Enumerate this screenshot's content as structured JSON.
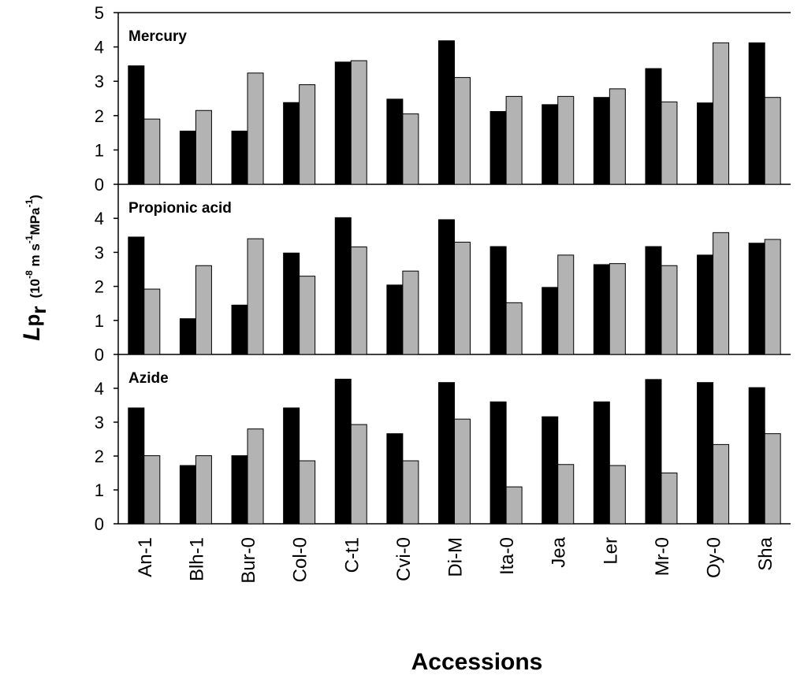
{
  "chart_data": {
    "type": "bar",
    "xlabel": "Accessions",
    "ylabel": {
      "main": "L",
      "sub": "p",
      "subsub": "r",
      "unit_parts": [
        "(10",
        "-8",
        " m s",
        "-1",
        "MPa",
        "-1",
        ")"
      ]
    },
    "categories": [
      "An-1",
      "Blh-1",
      "Bur-0",
      "Col-0",
      "C-t1",
      "Cvi-0",
      "Di-M",
      "Ita-0",
      "Jea",
      "Ler",
      "Mr-0",
      "Oy-0",
      "Sha"
    ],
    "colors": {
      "series1": "#000000",
      "series2": "#b3b3b3"
    },
    "panels": [
      {
        "title": "Mercury",
        "ylim": [
          0,
          5
        ],
        "yticks": [
          0,
          1,
          2,
          3,
          4,
          5
        ],
        "series": [
          {
            "values": [
              3.45,
              1.55,
              1.55,
              2.38,
              3.56,
              2.48,
              4.18,
              2.12,
              2.32,
              2.53,
              3.37,
              2.37,
              4.12
            ]
          },
          {
            "values": [
              1.9,
              2.15,
              3.24,
              2.9,
              3.6,
              2.05,
              3.11,
              2.56,
              2.56,
              2.78,
              2.4,
              4.12,
              2.53
            ]
          }
        ]
      },
      {
        "title": "Propionic acid",
        "ylim": [
          0,
          5
        ],
        "yticks": [
          0,
          1,
          2,
          3,
          4
        ],
        "series": [
          {
            "values": [
              3.45,
              1.05,
              1.45,
              2.98,
              4.02,
              2.04,
              3.96,
              3.17,
              1.97,
              2.64,
              3.17,
              2.92,
              3.27
            ]
          },
          {
            "values": [
              1.92,
              2.61,
              3.4,
              2.3,
              3.16,
              2.45,
              3.3,
              1.52,
              2.92,
              2.67,
              2.61,
              3.58,
              3.38
            ]
          }
        ]
      },
      {
        "title": "Azide",
        "ylim": [
          0,
          5
        ],
        "yticks": [
          0,
          1,
          2,
          3,
          4
        ],
        "series": [
          {
            "values": [
              3.42,
              1.72,
              2.01,
              3.42,
              4.27,
              2.66,
              4.17,
              3.6,
              3.16,
              3.6,
              4.26,
              4.17,
              4.02
            ]
          },
          {
            "values": [
              2.01,
              2.01,
              2.8,
              1.86,
              2.93,
              1.86,
              3.09,
              1.09,
              1.75,
              1.72,
              1.5,
              2.34,
              2.66
            ]
          }
        ]
      }
    ]
  }
}
